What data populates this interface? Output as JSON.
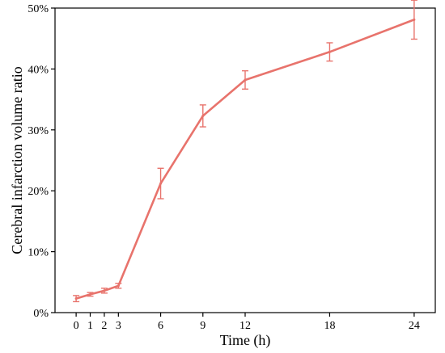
{
  "chart_data": {
    "type": "line",
    "xlabel": "Time (h)",
    "ylabel": "Cerebral infarction volume ratio",
    "xlim": [
      -1.5,
      25.5
    ],
    "ylim": [
      0,
      0.5
    ],
    "x_ticks": [
      0,
      1,
      2,
      3,
      6,
      9,
      12,
      18,
      24
    ],
    "y_ticks": [
      0,
      0.1,
      0.2,
      0.3,
      0.4,
      0.5
    ],
    "y_tick_labels": [
      "0%",
      "10%",
      "20%",
      "30%",
      "40%",
      "50%"
    ],
    "grid": false,
    "color": "#e8736c",
    "series": [
      {
        "x": [
          0,
          1,
          2,
          3,
          6,
          9,
          12,
          18,
          24
        ],
        "y": [
          0.023,
          0.03,
          0.036,
          0.044,
          0.212,
          0.323,
          0.382,
          0.428,
          0.481
        ],
        "err": [
          0.005,
          0.003,
          0.004,
          0.004,
          0.025,
          0.018,
          0.015,
          0.015,
          0.032
        ]
      }
    ]
  }
}
